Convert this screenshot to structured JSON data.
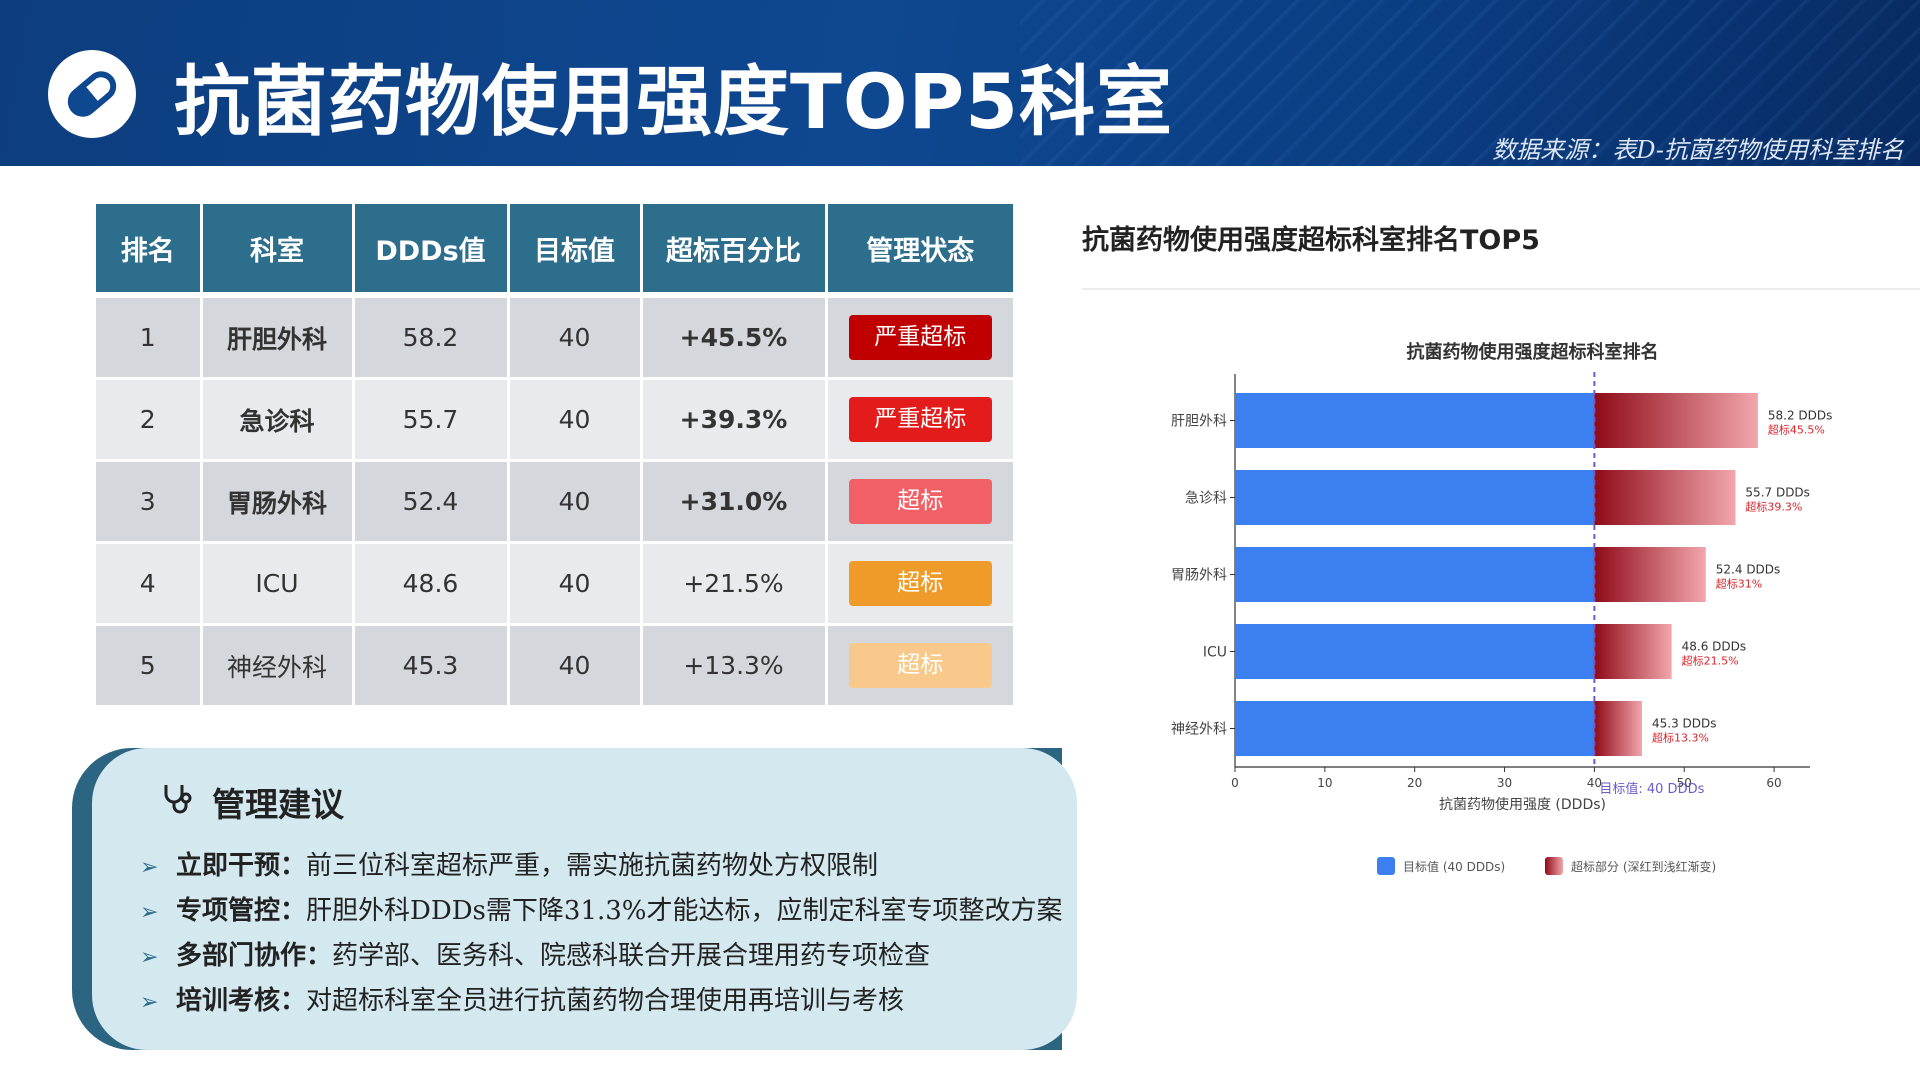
{
  "header": {
    "title": "抗菌药物使用强度TOP5科室",
    "data_source": "数据来源：表D-抗菌药物使用科室排名"
  },
  "table": {
    "headers": [
      "排名",
      "科室",
      "DDDs值",
      "目标值",
      "超标百分比",
      "管理状态"
    ],
    "rows": [
      {
        "rank": "1",
        "dept": "肝胆外科",
        "ddds": "58.2",
        "target": "40",
        "pct": "+45.5%",
        "status": "严重超标",
        "status_color": "#c00000",
        "emphasis": true
      },
      {
        "rank": "2",
        "dept": "急诊科",
        "ddds": "55.7",
        "target": "40",
        "pct": "+39.3%",
        "status": "严重超标",
        "status_color": "#e31b1b",
        "emphasis": true
      },
      {
        "rank": "3",
        "dept": "胃肠外科",
        "ddds": "52.4",
        "target": "40",
        "pct": "+31.0%",
        "status": "超标",
        "status_color": "#f26067",
        "emphasis": true
      },
      {
        "rank": "4",
        "dept": "ICU",
        "ddds": "48.6",
        "target": "40",
        "pct": "+21.5%",
        "status": "超标",
        "status_color": "#ef9b2a",
        "emphasis": false
      },
      {
        "rank": "5",
        "dept": "神经外科",
        "ddds": "45.3",
        "target": "40",
        "pct": "+13.3%",
        "status": "超标",
        "status_color": "#f8c98a",
        "emphasis": false
      }
    ]
  },
  "advice": {
    "title": "管理建议",
    "icon": "stethoscope-icon",
    "items": [
      {
        "key": "立即干预：",
        "text": "前三位科室超标严重，需实施抗菌药物处方权限制"
      },
      {
        "key": "专项管控：",
        "text": "肝胆外科DDDs需下降31.3%才能达标，应制定科室专项整改方案"
      },
      {
        "key": "多部门协作：",
        "text": "药学部、医务科、院感科联合开展合理用药专项检查"
      },
      {
        "key": "培训考核：",
        "text": "对超标科室全员进行抗菌药物合理使用再培训与考核"
      }
    ]
  },
  "chart_panel": {
    "title": "抗菌药物使用强度超标科室排名TOP5"
  },
  "chart_data": {
    "type": "bar",
    "orientation": "horizontal",
    "title": "抗菌药物使用强度超标科室排名",
    "xlabel": "抗菌药物使用强度 (DDDs)",
    "ylabel": "",
    "categories": [
      "肝胆外科",
      "急诊科",
      "胃肠外科",
      "ICU",
      "神经外科"
    ],
    "values": [
      58.2,
      55.7,
      52.4,
      48.6,
      45.3
    ],
    "series": [
      {
        "name": "目标值 (40 DDDs)",
        "values": [
          40,
          40,
          40,
          40,
          40
        ],
        "color": "#3b7ff0"
      },
      {
        "name": "超标部分 (深红到浅红渐变)",
        "values": [
          18.2,
          15.7,
          12.4,
          8.6,
          5.3
        ],
        "color": "#9e1020"
      }
    ],
    "value_labels": [
      "58.2 DDDs",
      "55.7 DDDs",
      "52.4 DDDs",
      "48.6 DDDs",
      "45.3 DDDs"
    ],
    "excess_labels": [
      "超标45.5%",
      "超标39.3%",
      "超标31%",
      "超标21.5%",
      "超标13.3%"
    ],
    "target_line": {
      "value": 40,
      "label": "目标值: 40 DDDs",
      "color": "#6a5bd0"
    },
    "xlim": [
      0,
      64
    ],
    "xticks": [
      0,
      10,
      20,
      30,
      40,
      50,
      60
    ],
    "legend_position": "bottom",
    "grid": false
  }
}
